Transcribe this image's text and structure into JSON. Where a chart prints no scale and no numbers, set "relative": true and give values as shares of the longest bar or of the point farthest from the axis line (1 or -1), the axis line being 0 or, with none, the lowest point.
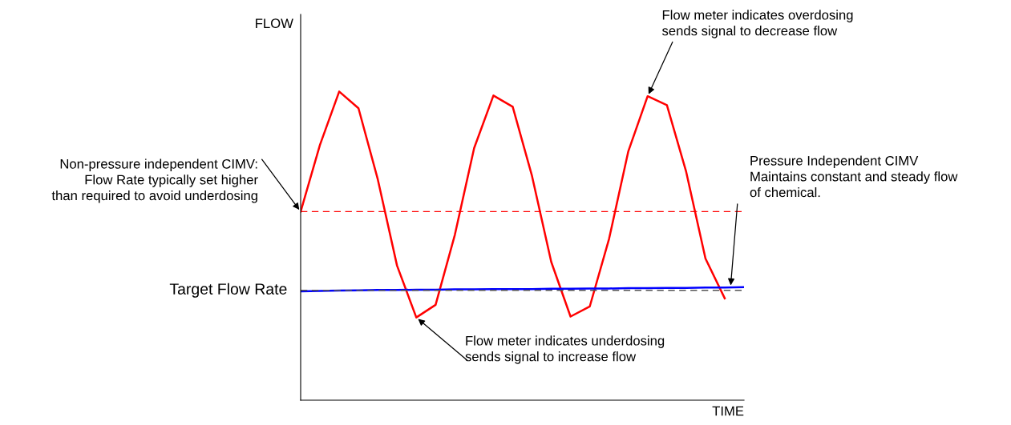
{
  "chart_data": {
    "type": "line",
    "relative": true,
    "xlabel": "TIME",
    "ylabel": "FLOW",
    "categories": [
      null,
      null,
      null,
      null,
      null,
      null,
      null,
      null,
      null,
      null,
      null,
      null,
      null,
      null,
      null,
      null,
      null,
      null,
      null,
      null,
      null,
      null,
      null,
      null
    ],
    "series": [
      {
        "color": "#ff0000",
        "values": [
          0.611,
          0.827,
          1,
          0.946,
          0.716,
          0.436,
          0.268,
          0.309,
          0.536,
          0.817,
          0.987,
          0.951,
          0.727,
          0.448,
          0.271,
          0.304,
          0.523,
          0.807,
          0.985,
          0.956,
          0.74,
          0.459,
          0.33,
          null
        ]
      },
      {
        "color": "#0000ff",
        "values": [
          0.353,
          0.354,
          0.355,
          0.356,
          0.357,
          0.357,
          0.358,
          0.358,
          0.359,
          0.359,
          0.36,
          0.36,
          0.36,
          0.361,
          0.361,
          0.362,
          0.362,
          0.363,
          0.363,
          0.364,
          0.364,
          0.365,
          0.365,
          0.366
        ]
      }
    ],
    "ref_lines": [
      {
        "axis": "y",
        "value": 0.611,
        "color": "#ff0000",
        "line_style": "dashed"
      },
      {
        "axis": "y",
        "value": 0.356,
        "color": "#555555",
        "line_style": "dashed",
        "label": "Target Flow Rate"
      }
    ],
    "annotations": [
      "Flow meter indicates overdosing\nsends signal to decrease flow",
      "Non-pressure independent CIMV:\nFlow Rate typically set higher\nthan required to avoid underdosing",
      "Pressure Independent CIMV\nMaintains constant and steady flow\nof chemical.",
      "Flow meter indicates underdosing\nsends signal to increase flow"
    ],
    "legend": false,
    "marker": "none",
    "line_style": "solid"
  }
}
